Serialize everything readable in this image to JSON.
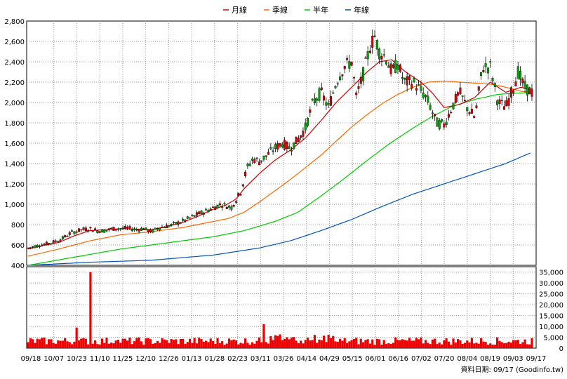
{
  "chart_data": {
    "type": "candlestick",
    "legend": [
      {
        "name": "月線",
        "color": "#cc0000"
      },
      {
        "name": "季線",
        "color": "#ff6600"
      },
      {
        "name": "半年",
        "color": "#00cc00"
      },
      {
        "name": "年線",
        "color": "#0055bb"
      }
    ],
    "legend_position": "top-center",
    "grid": true,
    "price_axis": {
      "ylim": [
        400,
        2800
      ],
      "ticks": [
        "400",
        "600",
        "800",
        "1,000",
        "1,200",
        "1,400",
        "1,600",
        "1,800",
        "2,000",
        "2,200",
        "2,400",
        "2,600",
        "2,800"
      ],
      "values": [
        400,
        600,
        800,
        1000,
        1200,
        1400,
        1600,
        1800,
        2000,
        2200,
        2400,
        2600,
        2800
      ]
    },
    "volume_axis": {
      "ylim": [
        0,
        37500
      ],
      "ticks": [
        "0",
        "5,000",
        "10,000",
        "15,000",
        "20,000",
        "25,000",
        "30,000",
        "35,000"
      ],
      "values": [
        0,
        5000,
        10000,
        15000,
        20000,
        25000,
        30000,
        35000
      ]
    },
    "x_ticks": [
      "09/18",
      "10/07",
      "10/23",
      "11/10",
      "11/25",
      "12/10",
      "12/26",
      "01/13",
      "01/28",
      "02/23",
      "03/11",
      "03/26",
      "04/14",
      "04/29",
      "05/15",
      "06/01",
      "06/16",
      "07/02",
      "07/20",
      "08/04",
      "08/19",
      "09/03",
      "09/17"
    ],
    "price_path": [
      [
        0,
        570
      ],
      [
        8,
        600
      ],
      [
        15,
        620
      ],
      [
        22,
        660
      ],
      [
        28,
        720
      ],
      [
        35,
        750
      ],
      [
        40,
        760
      ],
      [
        45,
        740
      ],
      [
        50,
        740
      ],
      [
        55,
        760
      ],
      [
        60,
        760
      ],
      [
        65,
        765
      ],
      [
        70,
        750
      ],
      [
        75,
        760
      ],
      [
        80,
        730
      ],
      [
        85,
        770
      ],
      [
        92,
        790
      ],
      [
        100,
        830
      ],
      [
        110,
        900
      ],
      [
        118,
        950
      ],
      [
        125,
        1000
      ],
      [
        132,
        970
      ],
      [
        138,
        1120
      ],
      [
        142,
        1350
      ],
      [
        146,
        1450
      ],
      [
        150,
        1420
      ],
      [
        155,
        1480
      ],
      [
        160,
        1550
      ],
      [
        165,
        1600
      ],
      [
        170,
        1550
      ],
      [
        175,
        1630
      ],
      [
        180,
        1750
      ],
      [
        185,
        2000
      ],
      [
        190,
        2100
      ],
      [
        195,
        1950
      ],
      [
        200,
        2200
      ],
      [
        205,
        2350
      ],
      [
        210,
        2400
      ],
      [
        213,
        2050
      ],
      [
        217,
        2250
      ],
      [
        222,
        2550
      ],
      [
        225,
        2650
      ],
      [
        228,
        2500
      ],
      [
        232,
        2450
      ],
      [
        236,
        2300
      ],
      [
        240,
        2380
      ],
      [
        244,
        2200
      ],
      [
        250,
        2200
      ],
      [
        256,
        2100
      ],
      [
        260,
        2000
      ],
      [
        265,
        1800
      ],
      [
        270,
        1780
      ],
      [
        275,
        1950
      ],
      [
        280,
        2100
      ],
      [
        285,
        1950
      ],
      [
        290,
        1850
      ],
      [
        295,
        2350
      ],
      [
        300,
        2350
      ],
      [
        305,
        2000
      ],
      [
        310,
        1950
      ],
      [
        315,
        2150
      ],
      [
        318,
        2300
      ],
      [
        322,
        2150
      ],
      [
        327,
        2100
      ]
    ],
    "monthly_ma": [
      [
        0,
        560
      ],
      [
        10,
        595
      ],
      [
        20,
        625
      ],
      [
        30,
        690
      ],
      [
        40,
        740
      ],
      [
        50,
        750
      ],
      [
        60,
        760
      ],
      [
        70,
        755
      ],
      [
        80,
        750
      ],
      [
        90,
        780
      ],
      [
        100,
        820
      ],
      [
        110,
        880
      ],
      [
        120,
        950
      ],
      [
        128,
        990
      ],
      [
        135,
        1050
      ],
      [
        140,
        1150
      ],
      [
        150,
        1300
      ],
      [
        160,
        1430
      ],
      [
        170,
        1530
      ],
      [
        180,
        1650
      ],
      [
        190,
        1820
      ],
      [
        200,
        2000
      ],
      [
        210,
        2150
      ],
      [
        220,
        2300
      ],
      [
        228,
        2400
      ],
      [
        236,
        2420
      ],
      [
        245,
        2300
      ],
      [
        255,
        2200
      ],
      [
        262,
        2100
      ],
      [
        270,
        1950
      ],
      [
        280,
        1980
      ],
      [
        290,
        2050
      ],
      [
        300,
        2200
      ],
      [
        310,
        2100
      ],
      [
        320,
        2150
      ],
      [
        327,
        2120
      ]
    ],
    "quarterly_ma": [
      [
        0,
        490
      ],
      [
        20,
        560
      ],
      [
        40,
        640
      ],
      [
        60,
        700
      ],
      [
        80,
        730
      ],
      [
        100,
        770
      ],
      [
        120,
        830
      ],
      [
        130,
        860
      ],
      [
        140,
        920
      ],
      [
        150,
        1020
      ],
      [
        160,
        1130
      ],
      [
        170,
        1240
      ],
      [
        180,
        1360
      ],
      [
        190,
        1480
      ],
      [
        200,
        1620
      ],
      [
        210,
        1760
      ],
      [
        220,
        1880
      ],
      [
        230,
        1990
      ],
      [
        240,
        2080
      ],
      [
        250,
        2150
      ],
      [
        260,
        2200
      ],
      [
        270,
        2210
      ],
      [
        280,
        2200
      ],
      [
        290,
        2190
      ],
      [
        300,
        2180
      ],
      [
        310,
        2150
      ],
      [
        320,
        2110
      ],
      [
        327,
        2100
      ]
    ],
    "halfyear_ma": [
      [
        0,
        400
      ],
      [
        30,
        480
      ],
      [
        60,
        560
      ],
      [
        90,
        620
      ],
      [
        120,
        680
      ],
      [
        140,
        740
      ],
      [
        160,
        830
      ],
      [
        175,
        920
      ],
      [
        190,
        1080
      ],
      [
        205,
        1250
      ],
      [
        220,
        1430
      ],
      [
        235,
        1600
      ],
      [
        250,
        1750
      ],
      [
        262,
        1860
      ],
      [
        275,
        1960
      ],
      [
        290,
        2030
      ],
      [
        305,
        2080
      ],
      [
        327,
        2100
      ]
    ],
    "yearly_ma": [
      [
        0,
        400
      ],
      [
        40,
        430
      ],
      [
        80,
        450
      ],
      [
        120,
        500
      ],
      [
        150,
        570
      ],
      [
        170,
        640
      ],
      [
        190,
        740
      ],
      [
        210,
        850
      ],
      [
        230,
        980
      ],
      [
        250,
        1100
      ],
      [
        270,
        1200
      ],
      [
        290,
        1300
      ],
      [
        310,
        1400
      ],
      [
        327,
        1510
      ]
    ],
    "volume_spikes": [
      [
        27,
        35000
      ],
      [
        38,
        3500
      ],
      [
        21,
        9500
      ],
      [
        102,
        11000
      ]
    ]
  },
  "footer": {
    "label": "資料日期: 09/17 (Goodinfo.tw)"
  }
}
